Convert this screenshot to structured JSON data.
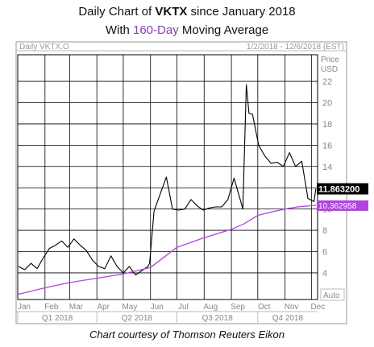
{
  "title": {
    "line1_prefix": "Daily Chart of ",
    "line1_ticker": "VKTX",
    "line1_suffix": " since January 2018",
    "line2_prefix": "With ",
    "line2_highlight": "160-Day",
    "line2_suffix": " Moving Average"
  },
  "credit": "Chart courtesy of Thomson Reuters Eikon",
  "colors": {
    "price": "#000000",
    "ma": "#b044e0",
    "grid": "#000000",
    "ma_label_bg": "#b044e0",
    "price_label_bg": "#000000"
  },
  "chart_data": {
    "type": "line",
    "instrument_label": "Daily VKTX.O",
    "date_range_label": "1/2/2018 - 12/6/2018 (EST)",
    "ylabel": "Price USD",
    "ylim": [
      1.5,
      24.5
    ],
    "y_ticks": [
      4,
      6,
      8,
      10,
      12,
      14,
      16,
      18,
      20,
      22
    ],
    "x_months": [
      "Jan",
      "Feb",
      "Mar",
      "Apr",
      "May",
      "Jun",
      "Jul",
      "Aug",
      "Sep",
      "Oct",
      "Nov",
      "Dec"
    ],
    "quarters": [
      "Q1 2018",
      "Q2 2018",
      "Q3 2018",
      "Q4 2018"
    ],
    "auto_label": "Auto",
    "last_price_label": "11.863200",
    "ma_label": "10.362958",
    "series": [
      {
        "name": "VKTX.O",
        "x": [
          "2018-01-02",
          "2018-01-09",
          "2018-01-16",
          "2018-01-23",
          "2018-01-30",
          "2018-02-06",
          "2018-02-13",
          "2018-02-20",
          "2018-02-27",
          "2018-03-06",
          "2018-03-13",
          "2018-03-20",
          "2018-03-27",
          "2018-04-03",
          "2018-04-10",
          "2018-04-17",
          "2018-04-24",
          "2018-05-01",
          "2018-05-08",
          "2018-05-15",
          "2018-05-22",
          "2018-05-29",
          "2018-05-31",
          "2018-06-05",
          "2018-06-12",
          "2018-06-19",
          "2018-06-26",
          "2018-07-03",
          "2018-07-10",
          "2018-07-17",
          "2018-07-24",
          "2018-07-31",
          "2018-08-07",
          "2018-08-14",
          "2018-08-21",
          "2018-08-28",
          "2018-09-04",
          "2018-09-11",
          "2018-09-14",
          "2018-09-18",
          "2018-09-21",
          "2018-09-25",
          "2018-10-02",
          "2018-10-09",
          "2018-10-16",
          "2018-10-23",
          "2018-10-30",
          "2018-11-06",
          "2018-11-13",
          "2018-11-20",
          "2018-11-27",
          "2018-12-04",
          "2018-12-06"
        ],
        "y": [
          4.6,
          4.3,
          4.9,
          4.4,
          5.4,
          6.3,
          6.6,
          7.0,
          6.4,
          7.2,
          6.6,
          6.1,
          5.2,
          4.6,
          4.4,
          5.6,
          4.6,
          4.0,
          4.6,
          3.8,
          4.2,
          4.6,
          4.9,
          9.8,
          11.4,
          13.0,
          10.0,
          9.9,
          10.0,
          10.9,
          10.3,
          9.9,
          10.1,
          10.2,
          10.2,
          10.9,
          12.9,
          10.9,
          10.0,
          21.7,
          19.0,
          18.9,
          16.0,
          15.0,
          14.3,
          14.4,
          14.0,
          15.3,
          14.0,
          14.5,
          11.0,
          10.7,
          11.9
        ]
      },
      {
        "name": "160-Day Moving Average",
        "x": [
          "2018-01-02",
          "2018-02-01",
          "2018-03-01",
          "2018-04-01",
          "2018-05-01",
          "2018-06-01",
          "2018-07-01",
          "2018-08-01",
          "2018-09-01",
          "2018-09-15",
          "2018-10-01",
          "2018-10-15",
          "2018-11-01",
          "2018-11-15",
          "2018-12-06"
        ],
        "y": [
          2.0,
          2.6,
          3.1,
          3.5,
          3.9,
          4.5,
          6.4,
          7.3,
          8.1,
          8.6,
          9.4,
          9.7,
          10.0,
          10.2,
          10.36
        ]
      }
    ]
  }
}
